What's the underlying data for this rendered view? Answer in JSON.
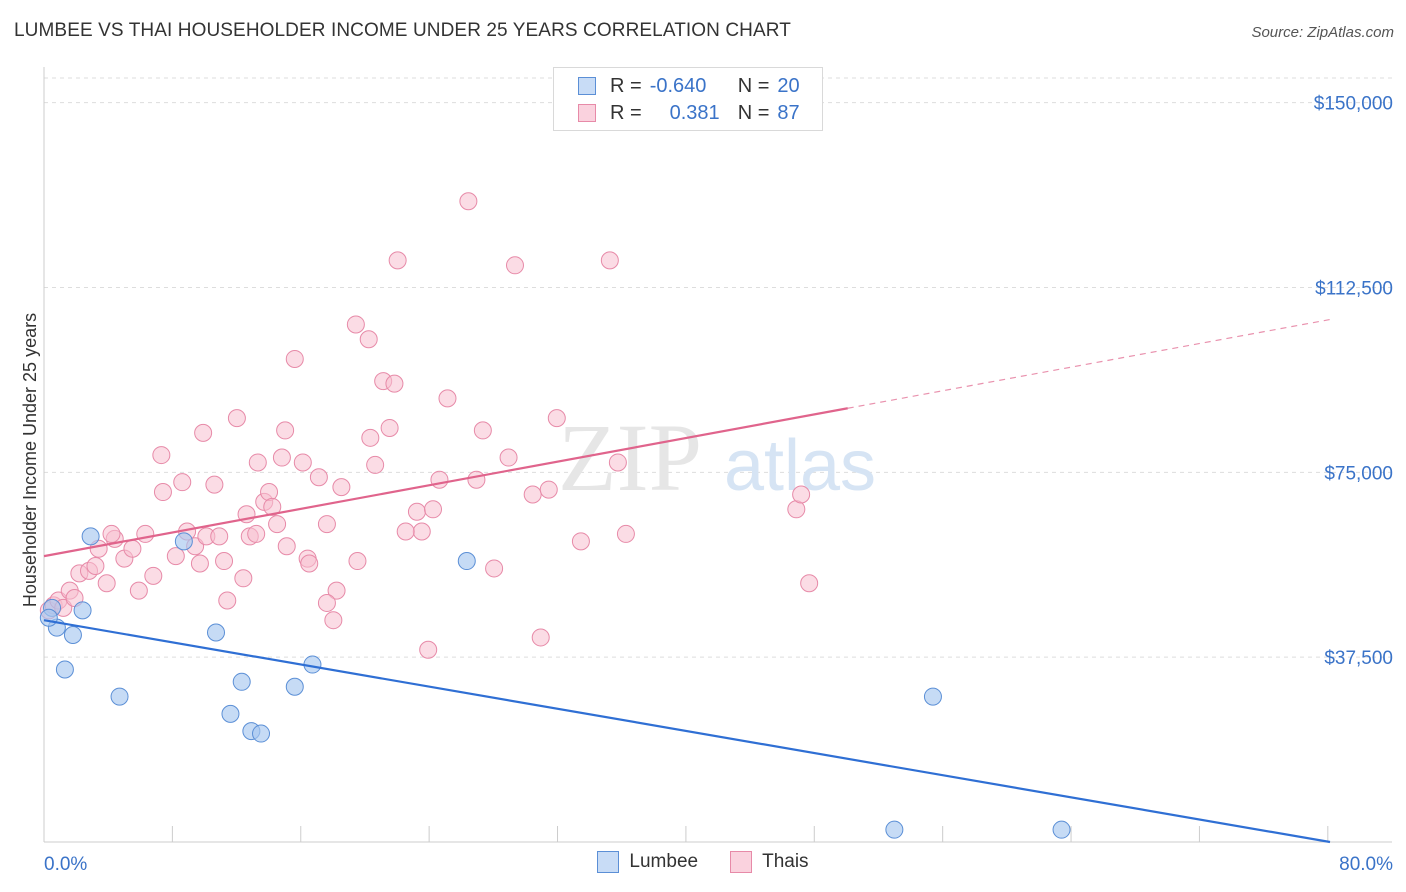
{
  "header": {
    "title": "LUMBEE VS THAI HOUSEHOLDER INCOME UNDER 25 YEARS CORRELATION CHART",
    "source": "Source: ZipAtlas.com"
  },
  "watermark": {
    "zip": "ZIP",
    "atlas": "atlas"
  },
  "legend": {
    "rows": [
      {
        "r_label": "R =",
        "r_value": "-0.640",
        "n_label": "N =",
        "n_value": "20",
        "color": "#a8c8f0",
        "border": "#5b8fd6"
      },
      {
        "r_label": "R =",
        "r_value": "0.381",
        "n_label": "N =",
        "n_value": "87",
        "color": "#f8c0d0",
        "border": "#e78aa8"
      }
    ]
  },
  "bottom_legend": {
    "lumbee": "Lumbee",
    "thais": "Thais"
  },
  "colors": {
    "lumbee_fill": "#a8c8f0",
    "lumbee_stroke": "#5b8fd6",
    "lumbee_line": "#2f6fd4",
    "thai_fill": "#f8c0d0",
    "thai_stroke": "#e78aa8",
    "thai_line": "#e0648c",
    "axis_label": "#3a73c8",
    "grid": "#dddddd"
  },
  "chart_data": {
    "type": "scatter",
    "title": "LUMBEE VS THAI HOUSEHOLDER INCOME UNDER 25 YEARS CORRELATION CHART",
    "xlabel": "",
    "ylabel": "Householder Income Under 25 years",
    "xlim": [
      0,
      80
    ],
    "ylim": [
      0,
      155000
    ],
    "x_tick_labels": [
      "0.0%",
      "80.0%"
    ],
    "y_ticks": [
      37500,
      75000,
      112500,
      150000
    ],
    "y_tick_labels": [
      "$37,500",
      "$75,000",
      "$112,500",
      "$150,000"
    ],
    "grid": "horizontal dashed",
    "legend_position": "top-center",
    "series": [
      {
        "name": "Lumbee",
        "points": [
          [
            0.5,
            47500
          ],
          [
            0.8,
            43500
          ],
          [
            1.8,
            42000
          ],
          [
            2.4,
            47000
          ],
          [
            1.3,
            35000
          ],
          [
            2.9,
            62000
          ],
          [
            4.7,
            29500
          ],
          [
            8.7,
            61000
          ],
          [
            10.7,
            42500
          ],
          [
            11.6,
            26000
          ],
          [
            12.3,
            32500
          ],
          [
            12.9,
            22500
          ],
          [
            13.5,
            22000
          ],
          [
            15.6,
            31500
          ],
          [
            16.7,
            36000
          ],
          [
            26.3,
            57000
          ],
          [
            52.9,
            2500
          ],
          [
            55.3,
            29500
          ],
          [
            63.3,
            2500
          ],
          [
            0.3,
            45500
          ]
        ],
        "trend": {
          "x": [
            0,
            80
          ],
          "y": [
            45000,
            0
          ]
        }
      },
      {
        "name": "Thais",
        "points": [
          [
            0.3,
            47000
          ],
          [
            0.6,
            48000
          ],
          [
            0.9,
            49000
          ],
          [
            1.2,
            47500
          ],
          [
            1.6,
            51000
          ],
          [
            1.9,
            49500
          ],
          [
            2.2,
            54500
          ],
          [
            2.8,
            55000
          ],
          [
            3.4,
            59500
          ],
          [
            3.9,
            52500
          ],
          [
            4.4,
            61500
          ],
          [
            5.0,
            57500
          ],
          [
            5.5,
            59500
          ],
          [
            6.3,
            62500
          ],
          [
            6.8,
            54000
          ],
          [
            7.4,
            71000
          ],
          [
            8.2,
            58000
          ],
          [
            8.6,
            73000
          ],
          [
            9.4,
            60000
          ],
          [
            9.7,
            56500
          ],
          [
            10.1,
            62000
          ],
          [
            10.6,
            72500
          ],
          [
            11.2,
            57000
          ],
          [
            11.4,
            49000
          ],
          [
            12.0,
            86000
          ],
          [
            12.4,
            53500
          ],
          [
            12.8,
            62000
          ],
          [
            13.3,
            77000
          ],
          [
            13.7,
            69000
          ],
          [
            14.0,
            71000
          ],
          [
            14.5,
            64500
          ],
          [
            15.1,
            60000
          ],
          [
            15.6,
            98000
          ],
          [
            16.1,
            77000
          ],
          [
            16.4,
            57500
          ],
          [
            17.1,
            74000
          ],
          [
            17.6,
            64500
          ],
          [
            18.2,
            51000
          ],
          [
            18.5,
            72000
          ],
          [
            19.4,
            105000
          ],
          [
            19.5,
            57000
          ],
          [
            20.2,
            102000
          ],
          [
            20.6,
            76500
          ],
          [
            21.1,
            93500
          ],
          [
            21.8,
            93000
          ],
          [
            22.0,
            118000
          ],
          [
            23.2,
            67000
          ],
          [
            23.5,
            63000
          ],
          [
            23.9,
            39000
          ],
          [
            24.6,
            73500
          ],
          [
            25.1,
            90000
          ],
          [
            26.4,
            130000
          ],
          [
            26.9,
            73500
          ],
          [
            28.0,
            55500
          ],
          [
            28.9,
            78000
          ],
          [
            29.3,
            117000
          ],
          [
            30.4,
            70500
          ],
          [
            30.9,
            41500
          ],
          [
            31.4,
            71500
          ],
          [
            31.9,
            86000
          ],
          [
            33.4,
            61000
          ],
          [
            35.2,
            118000
          ],
          [
            35.7,
            77000
          ],
          [
            36.2,
            62500
          ],
          [
            46.8,
            67500
          ],
          [
            47.1,
            70500
          ],
          [
            47.6,
            52500
          ],
          [
            7.3,
            78500
          ],
          [
            9.9,
            83000
          ],
          [
            14.8,
            78000
          ],
          [
            16.5,
            56500
          ],
          [
            20.3,
            82000
          ],
          [
            21.5,
            84000
          ],
          [
            27.3,
            83500
          ],
          [
            3.2,
            56000
          ],
          [
            4.2,
            62500
          ],
          [
            5.9,
            51000
          ],
          [
            8.9,
            63000
          ],
          [
            10.9,
            62000
          ],
          [
            12.6,
            66500
          ],
          [
            14.2,
            68000
          ],
          [
            17.6,
            48500
          ],
          [
            18.0,
            45000
          ],
          [
            15.0,
            83500
          ],
          [
            13.2,
            62500
          ],
          [
            22.5,
            63000
          ],
          [
            24.2,
            67500
          ]
        ],
        "trend": {
          "x": [
            0,
            50,
            80
          ],
          "y": [
            58000,
            88000,
            106000
          ],
          "solid_until": 50
        }
      }
    ]
  }
}
